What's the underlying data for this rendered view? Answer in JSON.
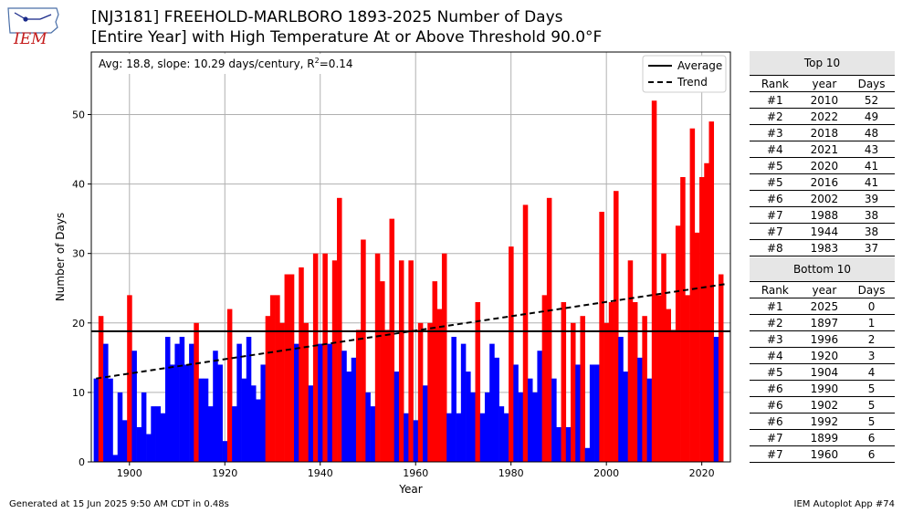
{
  "logo_text": "IEM",
  "title_line1": "[NJ3181] FREEHOLD-MARLBORO 1893-2025 Number of Days",
  "title_line2": "[Entire Year] with High Temperature At or Above Threshold 90.0°F",
  "chart_data": {
    "type": "bar",
    "xlabel": "Year",
    "ylabel": "Number of Days",
    "xlim": [
      1892,
      2026
    ],
    "ylim": [
      0,
      59
    ],
    "xticks": [
      1900,
      1920,
      1940,
      1960,
      1980,
      2000,
      2020
    ],
    "yticks": [
      0,
      10,
      20,
      30,
      40,
      50
    ],
    "grid": true,
    "stats_annotation": "Avg: 18.8, slope: 10.29 days/century, R",
    "stats_annotation_sup": "2",
    "stats_annotation_tail": "=0.14",
    "average": 18.8,
    "trend": {
      "start_year": 1893,
      "start_value": 12.0,
      "end_year": 2025,
      "end_value": 25.6
    },
    "above_color": "#ff0000",
    "below_color": "#0000ff",
    "legend": {
      "position": "top-right",
      "entries": [
        "Average",
        "Trend"
      ]
    },
    "start_year": 1893,
    "values": [
      12,
      21,
      17,
      12,
      1,
      10,
      6,
      24,
      16,
      5,
      10,
      4,
      8,
      8,
      7,
      18,
      14,
      17,
      18,
      14,
      17,
      20,
      12,
      12,
      8,
      16,
      14,
      3,
      22,
      8,
      17,
      12,
      18,
      11,
      9,
      14,
      21,
      24,
      24,
      20,
      27,
      27,
      17,
      28,
      20,
      11,
      30,
      17,
      30,
      17,
      29,
      38,
      16,
      13,
      15,
      19,
      32,
      10,
      8,
      30,
      26,
      19,
      35,
      13,
      29,
      7,
      29,
      6,
      20,
      11,
      20,
      26,
      22,
      30,
      7,
      18,
      7,
      17,
      13,
      10,
      23,
      7,
      10,
      17,
      15,
      8,
      7,
      31,
      14,
      10,
      37,
      12,
      10,
      16,
      24,
      38,
      12,
      5,
      23,
      5,
      20,
      14,
      21,
      2,
      14,
      14,
      36,
      20,
      23,
      39,
      18,
      13,
      29,
      23,
      15,
      21,
      12,
      52,
      24,
      30,
      22,
      19,
      34,
      41,
      24,
      48,
      33,
      41,
      43,
      49,
      18,
      27,
      0
    ]
  },
  "top10": {
    "title": "Top 10",
    "headers": [
      "Rank",
      "year",
      "Days"
    ],
    "rows": [
      [
        "#1",
        "2010",
        "52"
      ],
      [
        "#2",
        "2022",
        "49"
      ],
      [
        "#3",
        "2018",
        "48"
      ],
      [
        "#4",
        "2021",
        "43"
      ],
      [
        "#5",
        "2020",
        "41"
      ],
      [
        "#5",
        "2016",
        "41"
      ],
      [
        "#6",
        "2002",
        "39"
      ],
      [
        "#7",
        "1988",
        "38"
      ],
      [
        "#7",
        "1944",
        "38"
      ],
      [
        "#8",
        "1983",
        "37"
      ]
    ]
  },
  "bottom10": {
    "title": "Bottom 10",
    "headers": [
      "Rank",
      "year",
      "Days"
    ],
    "rows": [
      [
        "#1",
        "2025",
        "0"
      ],
      [
        "#2",
        "1897",
        "1"
      ],
      [
        "#3",
        "1996",
        "2"
      ],
      [
        "#4",
        "1920",
        "3"
      ],
      [
        "#5",
        "1904",
        "4"
      ],
      [
        "#6",
        "1990",
        "5"
      ],
      [
        "#6",
        "1902",
        "5"
      ],
      [
        "#6",
        "1992",
        "5"
      ],
      [
        "#7",
        "1899",
        "6"
      ],
      [
        "#7",
        "1960",
        "6"
      ]
    ]
  },
  "footer_left": "Generated at 15 Jun 2025 9:50 AM CDT in 0.48s",
  "footer_right": "IEM Autoplot App #74"
}
